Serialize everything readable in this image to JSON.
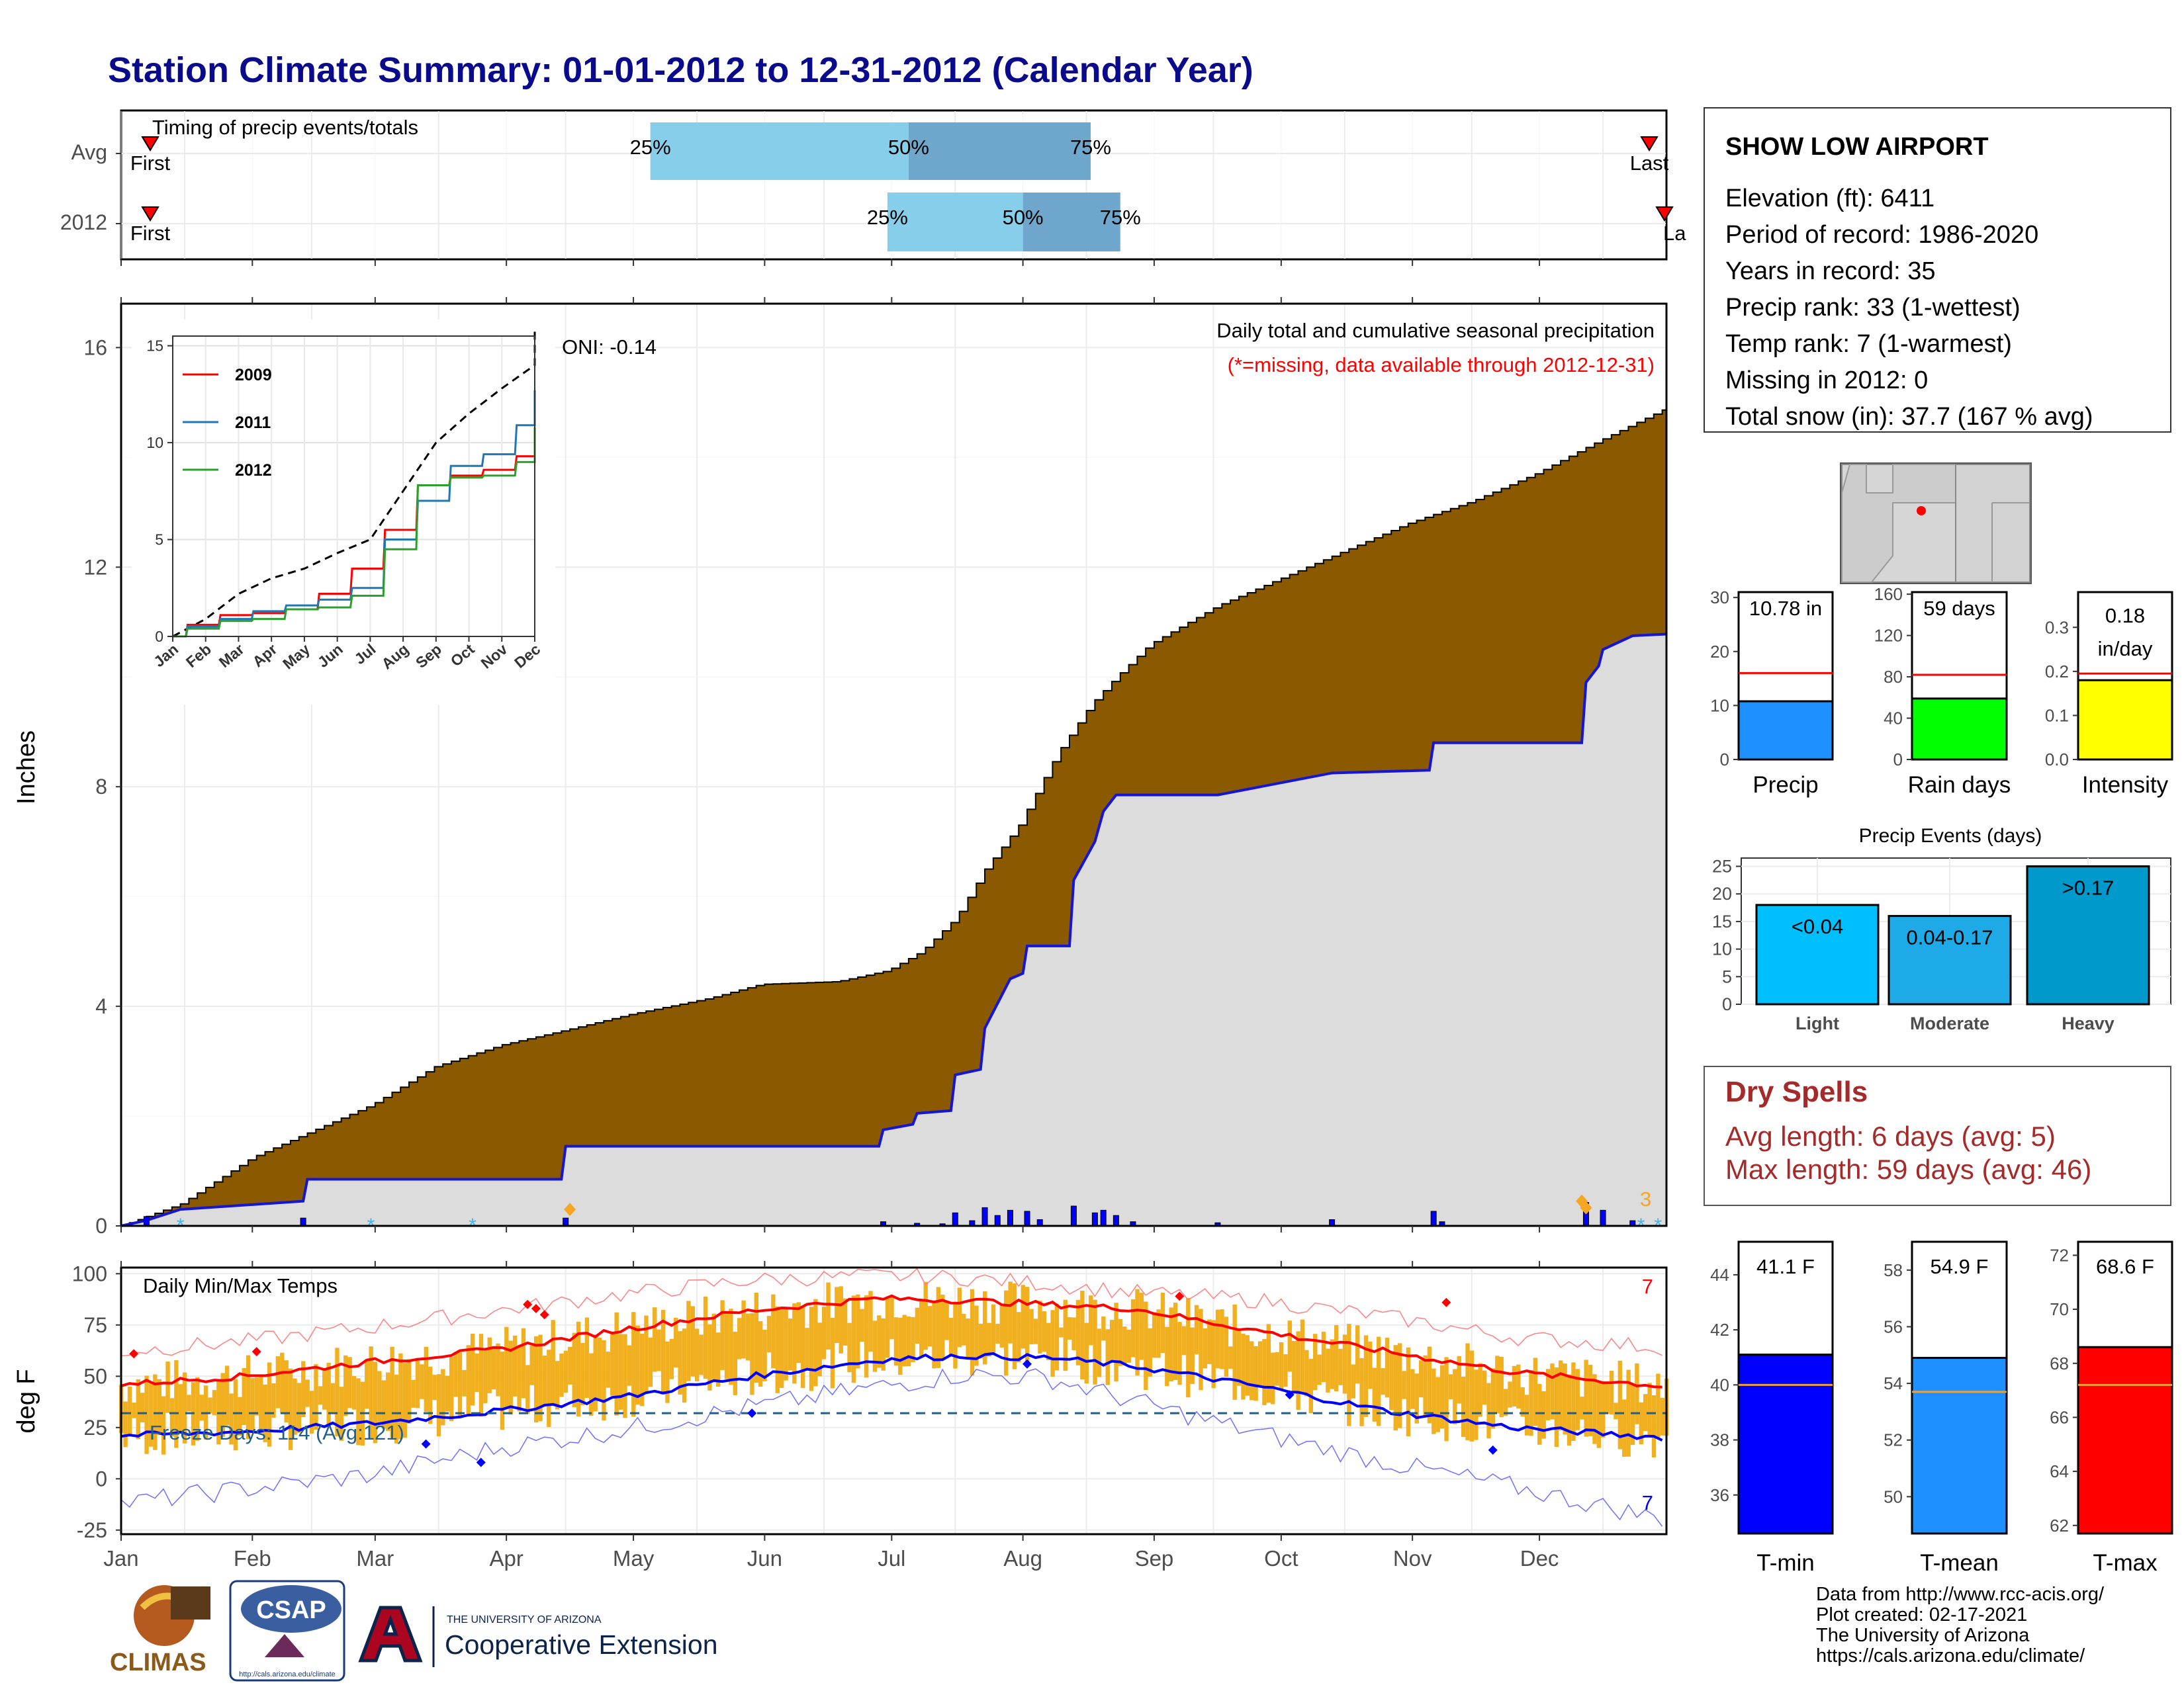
{
  "page": {
    "title": "Station Climate Summary: 01-01-2012 to 12-31-2012 (Calendar Year)"
  },
  "colors": {
    "title": "#0a0a8c",
    "avg_precip_area": "#8b5a00",
    "year_precip_area": "#dcdcdc",
    "year_precip_line": "#1515d6",
    "q_light": "#87ceeb",
    "q_dark": "#6fa6cc",
    "red": "#ff0000",
    "blue": "#0000ff",
    "orange": "#f0b020",
    "dry_spells": "#a52a2a",
    "tmean_bar": "#1e90ff",
    "grid": "#ebebeb"
  },
  "timing": {
    "label": "Timing of precip events/totals",
    "rows": [
      {
        "name": "Avg",
        "first": "First",
        "last": "Last",
        "q25": "25%",
        "q50": "50%",
        "q75": "75%",
        "first_day": 1,
        "last_day": 361,
        "q25_day": 126,
        "q50_day": 187,
        "q75_day": 230
      },
      {
        "name": "2012",
        "first": "First",
        "last": "La",
        "q25": "25%",
        "q50": "50%",
        "q75": "75%",
        "first_day": 1,
        "last_day": 366,
        "q25_day": 182,
        "q50_day": 214,
        "q75_day": 237
      }
    ]
  },
  "precip_panel": {
    "ylabel": "Inches",
    "heading": "Daily total and cumulative seasonal precipitation",
    "missing_note": "(*=missing, data available through 2012-12-31)",
    "oni": "ONI: -0.14",
    "snow_count": "3",
    "ylim": [
      0,
      16.8
    ],
    "yticks": [
      "0",
      "4",
      "8",
      "12",
      "16"
    ]
  },
  "chart_data": [
    {
      "type": "area",
      "title": "Daily total and cumulative seasonal precipitation",
      "ylabel": "Inches",
      "xlim_days": [
        1,
        366
      ],
      "ylim": [
        0,
        16.8
      ],
      "series": [
        {
          "name": "Avg",
          "x": [
            1,
            15,
            32,
            60,
            75,
            91,
            105,
            121,
            140,
            152,
            170,
            182,
            190,
            198,
            205,
            213,
            222,
            230,
            236,
            244,
            260,
            275,
            290,
            305,
            320,
            335,
            350,
            366
          ],
          "y": [
            0,
            0.4,
            1.25,
            2.2,
            2.9,
            3.3,
            3.55,
            3.85,
            4.15,
            4.4,
            4.45,
            4.65,
            5.0,
            5.6,
            6.5,
            7.3,
            8.6,
            9.5,
            10.0,
            10.6,
            11.3,
            11.8,
            12.3,
            12.8,
            13.2,
            13.7,
            14.3,
            14.9
          ]
        },
        {
          "name": "2012",
          "x": [
            1,
            7,
            15,
            44,
            45,
            75,
            105,
            106,
            180,
            181,
            188,
            189,
            197,
            198,
            204,
            205,
            210,
            211,
            214,
            215,
            225,
            226,
            231,
            233,
            236,
            260,
            287,
            310,
            311,
            346,
            347,
            350,
            351,
            358,
            366
          ],
          "y": [
            0,
            0.1,
            0.3,
            0.45,
            0.85,
            0.85,
            0.85,
            1.45,
            1.45,
            1.75,
            1.85,
            2.05,
            2.1,
            2.75,
            2.85,
            3.6,
            4.35,
            4.5,
            4.6,
            5.1,
            5.1,
            6.3,
            7.0,
            7.55,
            7.85,
            7.85,
            8.25,
            8.3,
            8.8,
            8.8,
            9.9,
            10.2,
            10.5,
            10.75,
            10.78
          ]
        }
      ]
    },
    {
      "type": "line",
      "title": "",
      "categories": [
        "Jan",
        "Feb",
        "Mar",
        "Apr",
        "May",
        "Jun",
        "Jul",
        "Aug",
        "Sep",
        "Oct",
        "Nov",
        "Dec"
      ],
      "ylim": [
        0,
        15.5
      ],
      "yticks": [
        "0",
        "5",
        "10",
        "15"
      ],
      "series": [
        {
          "name": "Avg",
          "values": [
            0.9,
            2.2,
            3.0,
            3.5,
            4.3,
            5.0,
            7.5,
            10.0,
            11.5,
            12.8,
            14.0,
            16.0
          ]
        },
        {
          "name": "2009",
          "values": [
            0.6,
            1.1,
            1.2,
            1.4,
            2.2,
            3.5,
            5.5,
            7.8,
            8.3,
            8.6,
            9.3,
            9.8
          ]
        },
        {
          "name": "2011",
          "values": [
            0.5,
            0.9,
            1.3,
            1.6,
            1.9,
            2.5,
            5.0,
            7.0,
            8.8,
            9.4,
            10.9,
            12.7
          ]
        },
        {
          "name": "2012",
          "values": [
            0.4,
            0.8,
            0.9,
            1.4,
            1.5,
            2.1,
            4.5,
            7.8,
            8.2,
            8.3,
            9.0,
            10.8
          ]
        }
      ]
    },
    {
      "type": "bar",
      "title": "Precip",
      "categories": [
        "Precip"
      ],
      "values": [
        10.78
      ],
      "label": "10.78 in",
      "reference": 16,
      "ylim": [
        0,
        31
      ],
      "yticks": [
        "0",
        "10",
        "20",
        "30"
      ]
    },
    {
      "type": "bar",
      "title": "Rain days",
      "categories": [
        "Rain days"
      ],
      "values": [
        59
      ],
      "label": "59 days",
      "reference": 82,
      "ylim": [
        0,
        162
      ],
      "yticks": [
        "0",
        "40",
        "80",
        "120",
        "160"
      ]
    },
    {
      "type": "bar",
      "title": "Intensity",
      "categories": [
        "Intensity"
      ],
      "values": [
        0.18
      ],
      "label": "0.18",
      "label2": "in/day",
      "reference": 0.195,
      "ylim": [
        0,
        0.38
      ],
      "yticks": [
        "0.0",
        "0.1",
        "0.2",
        "0.3"
      ]
    },
    {
      "type": "bar",
      "title": "Precip Events (days)",
      "categories": [
        "Light",
        "Moderate",
        "Heavy"
      ],
      "values": [
        18,
        16,
        25
      ],
      "labels": [
        "<0.04",
        "0.04-0.17",
        ">0.17"
      ],
      "ylim": [
        0,
        26.5
      ],
      "yticks": [
        "0",
        "5",
        "10",
        "15",
        "20",
        "25"
      ]
    },
    {
      "type": "line",
      "title": "Daily Min/Max Temps",
      "ylabel": "deg F",
      "ylim": [
        -27,
        103
      ],
      "yticks": [
        "-25",
        "0",
        "25",
        "50",
        "75",
        "100"
      ],
      "months": [
        "Jan",
        "Feb",
        "Mar",
        "Apr",
        "May",
        "Jun",
        "Jul",
        "Aug",
        "Sep",
        "Oct",
        "Nov",
        "Dec"
      ],
      "freeze_line": 32,
      "series": [
        {
          "name": "Avg Tmax",
          "x": [
            1,
            30,
            60,
            90,
            120,
            150,
            180,
            200,
            220,
            240,
            270,
            300,
            330,
            366
          ],
          "y": [
            46,
            50,
            57,
            63,
            73,
            82,
            88,
            87,
            85,
            83,
            72,
            62,
            52,
            45
          ]
        },
        {
          "name": "Avg Tmin",
          "x": [
            1,
            30,
            60,
            90,
            120,
            150,
            180,
            200,
            220,
            240,
            270,
            300,
            330,
            366
          ],
          "y": [
            21,
            23,
            27,
            33,
            40,
            50,
            58,
            60,
            59,
            55,
            45,
            33,
            25,
            20
          ]
        },
        {
          "name": "Record max",
          "x": [
            1,
            30,
            60,
            90,
            120,
            150,
            180,
            200,
            220,
            240,
            270,
            300,
            330,
            366
          ],
          "y": [
            62,
            67,
            74,
            82,
            90,
            97,
            99,
            98,
            95,
            91,
            87,
            79,
            69,
            64
          ]
        },
        {
          "name": "Record min",
          "x": [
            1,
            30,
            60,
            90,
            120,
            150,
            180,
            200,
            220,
            240,
            270,
            300,
            330,
            366
          ],
          "y": [
            -12,
            -5,
            2,
            15,
            24,
            35,
            45,
            51,
            49,
            38,
            22,
            8,
            -4,
            -20
          ]
        }
      ]
    },
    {
      "type": "bar",
      "title": "T-min",
      "categories": [
        "T-min"
      ],
      "values": [
        41.1
      ],
      "label": "41.1 F",
      "reference": 40.0,
      "ylim": [
        34.6,
        45.2
      ],
      "yticks": [
        "36",
        "38",
        "40",
        "42",
        "44"
      ]
    },
    {
      "type": "bar",
      "title": "T-mean",
      "categories": [
        "T-mean"
      ],
      "values": [
        54.9
      ],
      "label": "54.9 F",
      "reference": 53.7,
      "ylim": [
        48.7,
        59.0
      ],
      "yticks": [
        "50",
        "52",
        "54",
        "56",
        "58"
      ]
    },
    {
      "type": "bar",
      "title": "T-max",
      "categories": [
        "T-max"
      ],
      "values": [
        68.6
      ],
      "label": "68.6 F",
      "reference": 67.2,
      "ylim": [
        61.7,
        72.5
      ],
      "yticks": [
        "62",
        "64",
        "66",
        "68",
        "70",
        "72"
      ]
    }
  ],
  "inset": {
    "months": [
      "Jan",
      "Feb",
      "Mar",
      "Apr",
      "May",
      "Jun",
      "Jul",
      "Aug",
      "Sep",
      "Oct",
      "Nov",
      "Dec"
    ],
    "yticks": [
      "0",
      "5",
      "10",
      "15"
    ],
    "legend": [
      "2009",
      "2011",
      "2012"
    ]
  },
  "months": [
    "Jan",
    "Feb",
    "Mar",
    "Apr",
    "May",
    "Jun",
    "Jul",
    "Aug",
    "Sep",
    "Oct",
    "Nov",
    "Dec"
  ],
  "temp_panel": {
    "ylabel": "deg F",
    "heading": "Daily Min/Max Temps",
    "freeze_text": "Freeze Days: 114 (Avg:121)",
    "record_hi_count": "7",
    "record_lo_count": "7",
    "yticks": [
      "100",
      "75",
      "50",
      "25",
      "0",
      "-25"
    ]
  },
  "station": {
    "name": "SHOW LOW AIRPORT",
    "lines": [
      "Elevation (ft): 6411",
      "Period of record: 1986-2020",
      "Years in record: 35",
      "Precip rank: 33 (1-wettest)",
      "Temp rank: 7 (1-warmest)",
      "Missing in 2012: 0",
      "Total snow (in): 37.7 (167 % avg)"
    ]
  },
  "bars_top": {
    "precip": {
      "label": "10.78 in",
      "name": "Precip",
      "ticks": [
        "30",
        "20",
        "10",
        "0"
      ]
    },
    "rain_days": {
      "label": "59 days",
      "name": "Rain days",
      "ticks": [
        "160",
        "120",
        "80",
        "40",
        "0"
      ]
    },
    "intensity": {
      "label": "0.18",
      "label2": "in/day",
      "name": "Intensity",
      "ticks": [
        "0.3",
        "0.2",
        "0.1",
        "0.0"
      ]
    }
  },
  "events": {
    "title": "Precip Events (days)",
    "ticks": [
      "25",
      "20",
      "15",
      "10",
      "5",
      "0"
    ],
    "cats": [
      "Light",
      "Moderate",
      "Heavy"
    ],
    "labels": [
      "<0.04",
      "0.04-0.17",
      ">0.17"
    ]
  },
  "dry_spells": {
    "title": "Dry Spells",
    "avg": "Avg length: 6 days (avg: 5)",
    "max": "Max length: 59 days (avg: 46)"
  },
  "temp_bars": {
    "tmin": {
      "label": "41.1 F",
      "name": "T-min",
      "ticks": [
        "44",
        "42",
        "40",
        "38",
        "36"
      ]
    },
    "tmean": {
      "label": "54.9 F",
      "name": "T-mean",
      "ticks": [
        "58",
        "56",
        "54",
        "52",
        "50"
      ]
    },
    "tmax": {
      "label": "68.6 F",
      "name": "T-max",
      "ticks": [
        "72",
        "70",
        "68",
        "66",
        "64",
        "62"
      ]
    }
  },
  "credits": [
    "Data from http://www.rcc-acis.org/",
    "Plot created: 02-17-2021",
    "The University of Arizona",
    "https://cals.arizona.edu/climate/"
  ],
  "logos": {
    "climas": "CLIMAS",
    "csap": "CSAP",
    "csap_url": "http://cals.arizona.edu/climate",
    "ua_small": "THE UNIVERSITY OF ARIZONA",
    "ua_big": "Cooperative Extension"
  }
}
